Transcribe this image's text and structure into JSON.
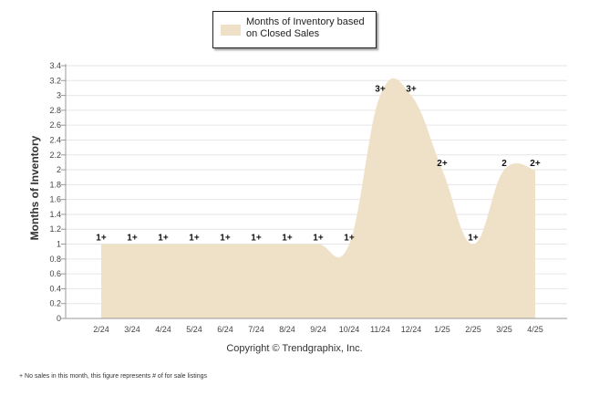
{
  "chart_data": {
    "type": "area",
    "ylabel": "Months of Inventory",
    "xlabel": "",
    "categories": [
      "2/24",
      "3/24",
      "4/24",
      "5/24",
      "6/24",
      "7/24",
      "8/24",
      "9/24",
      "10/24",
      "11/24",
      "12/24",
      "1/25",
      "2/25",
      "3/25",
      "4/25"
    ],
    "ylim": [
      0,
      3.4
    ],
    "yticks": [
      "0",
      "0.2",
      "0.4",
      "0.6",
      "0.8",
      "1",
      "1.2",
      "1.4",
      "1.6",
      "1.8",
      "2",
      "2.2",
      "2.4",
      "2.6",
      "2.8",
      "3",
      "3.2",
      "3.4"
    ],
    "grid": true,
    "legend_position": "top-center",
    "series": [
      {
        "name": "Months of Inventory based on Closed Sales",
        "values": [
          1,
          1,
          1,
          1,
          1,
          1,
          1,
          1,
          1,
          3,
          3,
          2,
          1,
          2,
          2
        ],
        "labels": [
          "1+",
          "1+",
          "1+",
          "1+",
          "1+",
          "1+",
          "1+",
          "1+",
          "1+",
          "3+",
          "3+",
          "2+",
          "1+",
          "2",
          "2+"
        ],
        "color": "#efe1c7"
      }
    ]
  },
  "legend": {
    "label_line1": "Months of Inventory based",
    "label_line2": "on Closed Sales"
  },
  "copyright": "Copyright © Trendgraphix, Inc.",
  "footnote": "+  No sales in this month, this figure represents # of for sale listings"
}
